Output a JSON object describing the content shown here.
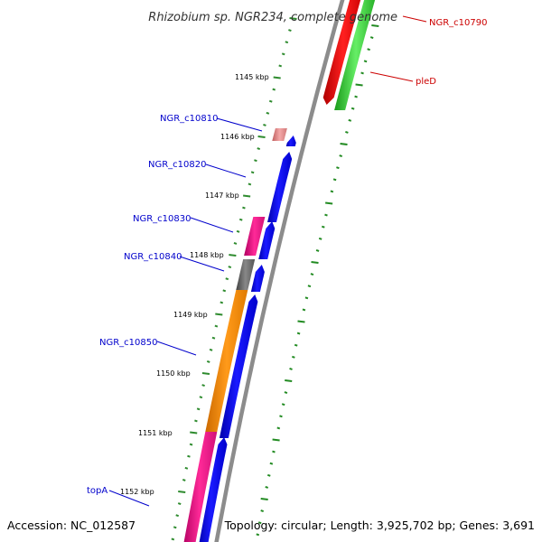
{
  "title": "Rhizobium sp. NGR234, complete genome",
  "accession": "Accession: NC_012587",
  "topology": "Topology: circular; Length: 3,925,702 bp; Genes: 3,691",
  "colors": {
    "background": "#ffffff",
    "backbone": "#8c8c8c",
    "tick_inner": "#2e8b2e",
    "tick_outer": "#228b22",
    "label_left": "#0000cc",
    "label_right": "#cc0000",
    "gene_blue": "#0000ee",
    "gene_orange": "#ff8c00",
    "gene_pink": "#e0107f",
    "gene_gray": "#666666",
    "gene_salmon": "#e89090",
    "gene_red": "#ee0000",
    "gene_green": "#33cc33"
  },
  "kbp_labels": [
    "1145 kbp",
    "1146 kbp",
    "1147 kbp",
    "1148 kbp",
    "1149 kbp",
    "1150 kbp",
    "1151 kbp",
    "1152 kbp"
  ],
  "left_genes": [
    {
      "name": "NGR_c10810",
      "color": "salmon"
    },
    {
      "name": "NGR_c10820",
      "color": "blue"
    },
    {
      "name": "NGR_c10830",
      "color": "pink"
    },
    {
      "name": "NGR_c10840",
      "color": "gray"
    },
    {
      "name": "NGR_c10850",
      "color": "orange"
    },
    {
      "name": "topA",
      "color": "pink"
    }
  ],
  "right_genes": [
    {
      "name": "NGR_c10790",
      "color": "red"
    },
    {
      "name": "pleD",
      "color": "green"
    }
  ]
}
